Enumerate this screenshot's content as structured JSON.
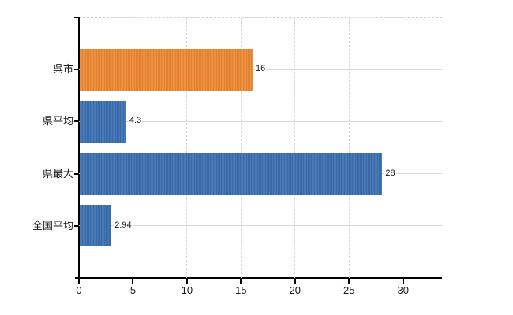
{
  "chart_data": {
    "type": "bar",
    "orientation": "horizontal",
    "title": "",
    "categories": [
      "呉市",
      "県平均",
      "県最大",
      "全国平均"
    ],
    "values": [
      16,
      4.3,
      28,
      2.94
    ],
    "value_labels": [
      "16",
      "4.3",
      "28",
      "2.94"
    ],
    "bar_colors": [
      "#EE8833",
      "#3B6FB1",
      "#3B6FB1",
      "#3B6FB1"
    ],
    "xlabel": "",
    "ylabel": "",
    "xlim": [
      0,
      33.6
    ],
    "xticks": [
      0,
      5,
      10,
      15,
      20,
      25,
      30
    ],
    "grid": {
      "vertical_gridlines": "dashed",
      "horizontal_gridlines": "solid",
      "top_border": "dashed"
    },
    "legend": "none",
    "colors": {
      "bar_orange": "#EE8833",
      "bar_blue": "#3B6FB1",
      "gridline": "#D6D6D6",
      "axis": "#000000",
      "text": "#1A1A1A",
      "background": "#FFFFFF"
    }
  }
}
